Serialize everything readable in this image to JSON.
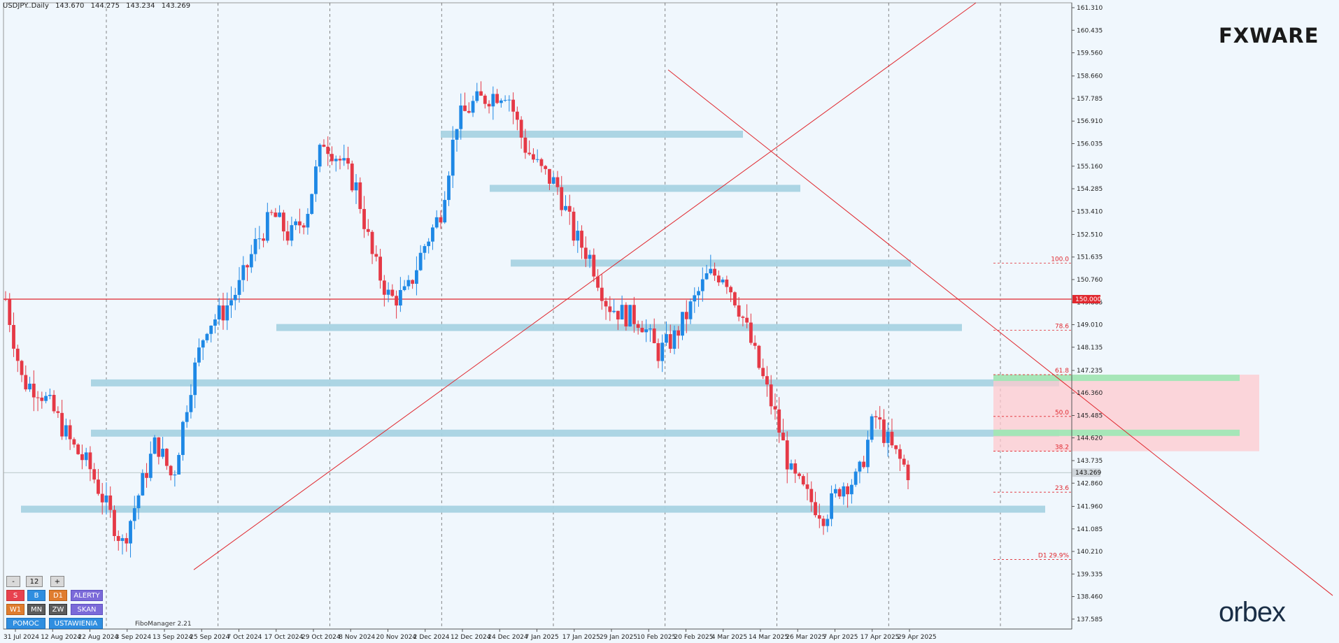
{
  "header": {
    "symbol": "USDJPY..Daily",
    "open": "143.670",
    "high": "144.275",
    "low": "143.234",
    "close": "143.269"
  },
  "brand_top": "FXWARE",
  "brand_bottom": "orbex",
  "indicator_label": "FiboManager 2.21",
  "current_price": "143.269",
  "level_150_label": "150.000",
  "price_axis": [
    "161.310",
    "160.435",
    "159.560",
    "158.660",
    "157.785",
    "156.910",
    "156.035",
    "155.160",
    "154.285",
    "153.410",
    "152.510",
    "151.635",
    "150.760",
    "149.885",
    "149.010",
    "148.135",
    "147.235",
    "146.360",
    "145.485",
    "144.620",
    "143.735",
    "142.860",
    "141.960",
    "141.085",
    "140.210",
    "139.335",
    "138.460",
    "137.585"
  ],
  "time_axis": [
    "31 Jul 2024",
    "12 Aug 2024",
    "22 Aug 2024",
    "3 Sep 2024",
    "13 Sep 2024",
    "25 Sep 2024",
    "7 Oct 2024",
    "17 Oct 2024",
    "29 Oct 2024",
    "8 Nov 2024",
    "20 Nov 2024",
    "2 Dec 2024",
    "12 Dec 2024",
    "24 Dec 2024",
    "7 Jan 2025",
    "17 Jan 2025",
    "29 Jan 2025",
    "10 Feb 2025",
    "20 Feb 2025",
    "4 Mar 2025",
    "14 Mar 2025",
    "26 Mar 2025",
    "7 Apr 2025",
    "17 Apr 2025",
    "29 Apr 2025"
  ],
  "fib_levels": [
    {
      "label": "100.0",
      "price": 151.4
    },
    {
      "label": "78.6",
      "price": 148.79
    },
    {
      "label": "61.8",
      "price": 147.07
    },
    {
      "label": "50.0",
      "price": 145.45
    },
    {
      "label": "38.2",
      "price": 144.1
    },
    {
      "label": "23.6",
      "price": 142.51
    },
    {
      "label": "D1 29.9%",
      "price": 139.9
    }
  ],
  "panel": {
    "minus": "-",
    "count": "12",
    "plus": "+",
    "sell": "S",
    "buy": "B",
    "d1": "D1",
    "alerts": "ALERTY",
    "w1": "W1",
    "mn": "MN",
    "zw": "ZW",
    "scan": "SKAN",
    "help": "POMOC",
    "settings": "USTAWIENIA"
  },
  "colors": {
    "bull": "#1e88e5",
    "bear": "#e53946",
    "zone": "#a8d3e3",
    "level": "#e0272e",
    "pink_zone": "#ffc9cd",
    "green_zone": "#9ce8b4"
  },
  "chart_data": {
    "type": "candlestick",
    "title": "USDJPY..Daily",
    "ylim": [
      137.2,
      161.5
    ],
    "x": [
      "31 Jul 2024",
      "12 Aug 2024",
      "22 Aug 2024",
      "3 Sep 2024",
      "13 Sep 2024",
      "25 Sep 2024",
      "7 Oct 2024",
      "17 Oct 2024",
      "29 Oct 2024",
      "8 Nov 2024",
      "20 Nov 2024",
      "2 Dec 2024",
      "12 Dec 2024",
      "24 Dec 2024",
      "7 Jan 2025",
      "17 Jan 2025",
      "29 Jan 2025",
      "10 Feb 2025",
      "20 Feb 2025",
      "4 Mar 2025",
      "14 Mar 2025",
      "26 Mar 2025",
      "7 Apr 2025",
      "17 Apr 2025",
      "29 Apr 2025"
    ],
    "close_path": [
      150.0,
      146.8,
      146.5,
      145.5,
      144.3,
      143.5,
      142.0,
      140.5,
      142.5,
      144.5,
      143.0,
      146.5,
      149.0,
      149.5,
      150.5,
      152.2,
      153.3,
      152.4,
      153.3,
      156.2,
      155.4,
      154.3,
      151.5,
      150.0,
      150.2,
      152.0,
      153.3,
      156.9,
      157.6,
      157.9,
      158.1,
      156.0,
      155.0,
      154.4,
      152.5,
      151.6,
      149.8,
      149.4,
      149.2,
      147.9,
      148.5,
      149.7,
      150.9,
      151.0,
      149.5,
      147.5,
      145.6,
      143.2,
      142.3,
      141.6,
      142.8,
      143.0,
      145.5,
      144.2,
      143.3
    ],
    "close_x": [
      "31 Jul 2024",
      "3 Aug",
      "8 Aug",
      "12 Aug 2024",
      "16 Aug",
      "22 Aug 2024",
      "27 Aug",
      "3 Sep 2024",
      "7 Sep",
      "13 Sep 2024",
      "18 Sep",
      "25 Sep 2024",
      "30 Sep",
      "7 Oct 2024",
      "12 Oct",
      "17 Oct 2024",
      "23 Oct",
      "29 Oct 2024",
      "3 Nov",
      "8 Nov 2024",
      "14 Nov",
      "20 Nov 2024",
      "26 Nov",
      "2 Dec 2024",
      "7 Dec",
      "12 Dec 2024",
      "18 Dec",
      "24 Dec 2024",
      "30 Dec",
      "7 Jan 2025",
      "11 Jan",
      "17 Jan 2025",
      "23 Jan",
      "29 Jan 2025",
      "4 Feb",
      "10 Feb 2025",
      "15 Feb",
      "20 Feb 2025",
      "26 Feb",
      "4 Mar 2025",
      "9 Mar",
      "14 Mar 2025",
      "20 Mar",
      "26 Mar 2025",
      "1 Apr",
      "7 Apr 2025",
      "11 Apr",
      "17 Apr 2025",
      "21 Apr",
      "25 Apr",
      "29 Apr 2025",
      "1 May",
      "3 May",
      "5 May",
      "7 May"
    ],
    "support_resistance_zones": [
      156.4,
      154.3,
      151.4,
      148.9,
      146.75,
      144.8,
      141.85
    ],
    "round_level": 150.0,
    "trendlines": "ascending from ~139.5 (Sep 2024) and descending from ~158.9 (Jan 2025)",
    "grid": false
  }
}
